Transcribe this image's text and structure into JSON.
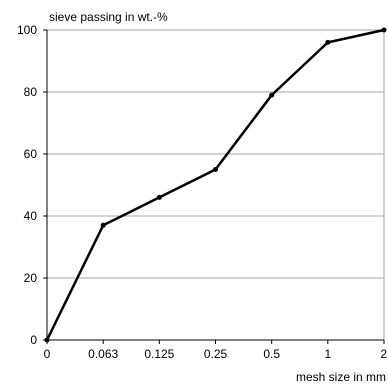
{
  "chart_data": {
    "type": "line",
    "title": "",
    "xlabel": "mesh size in mm",
    "ylabel": "sieve passing in wt.-%",
    "categories": [
      "0",
      "0.063",
      "0.125",
      "0.25",
      "0.5",
      "1",
      "2"
    ],
    "values": [
      0,
      37,
      46,
      55,
      79,
      96,
      100
    ],
    "ylim": [
      0,
      100
    ],
    "yticks": [
      0,
      20,
      40,
      60,
      80,
      100
    ],
    "grid": true,
    "colors": {
      "line": "#000000",
      "grid": "#a6a6a6",
      "axis": "#000000"
    }
  }
}
